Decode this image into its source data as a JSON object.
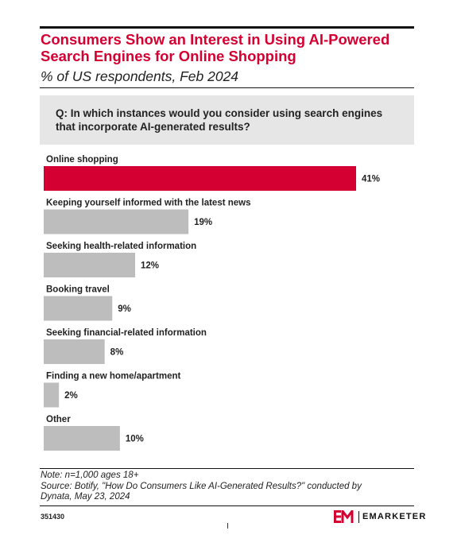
{
  "header": {
    "title_line1": "Consumers Show an Interest in Using AI-Powered",
    "title_line2": "Search Engines for Online Shopping",
    "subtitle": "% of US respondents, Feb 2024"
  },
  "question": {
    "line1": "Q: In which instances would you consider using search engines",
    "line2": "that incorporate AI-generated results?"
  },
  "chart_data": {
    "type": "bar",
    "orientation": "horizontal",
    "categories": [
      "Online shopping",
      "Keeping yourself informed with the latest news",
      "Seeking health-related information",
      "Booking travel",
      "Seeking financial-related information",
      "Finding a new home/apartment",
      "Other"
    ],
    "values": [
      41,
      19,
      12,
      9,
      8,
      2,
      10
    ],
    "value_labels": [
      "41%",
      "19%",
      "12%",
      "9%",
      "8%",
      "2%",
      "10%"
    ],
    "highlight_index": 0,
    "colors": {
      "highlight": "#d50032",
      "bar": "#bdbdbd"
    },
    "xlim": [
      0,
      41
    ],
    "grid": false
  },
  "footer": {
    "note": "Note: n=1,000 ages 18+",
    "source_line1": "Source: Botify, \"How Do Consumers Like AI-Generated Results?\" conducted by",
    "source_line2": "Dynata,  May 23, 2024",
    "chart_id": "351430",
    "brand": "EMARKETER"
  }
}
